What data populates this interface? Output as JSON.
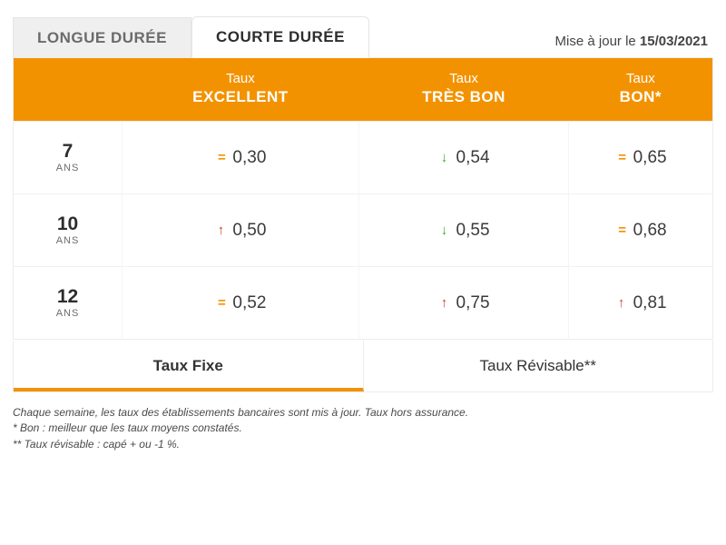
{
  "colors": {
    "brand_orange": "#f39200",
    "up": "#d83a2b",
    "down": "#3fa82f",
    "equal": "#f39200",
    "text": "#333333",
    "muted": "#6b6b6b",
    "border": "#ececec",
    "bg": "#ffffff"
  },
  "tabs_top": {
    "longue": "LONGUE DURÉE",
    "courte": "COURTE DURÉE",
    "active": "courte"
  },
  "update": {
    "prefix": "Mise à jour le ",
    "date": "15/03/2021"
  },
  "table": {
    "type": "table",
    "header_top": "Taux",
    "year_unit": "ANS",
    "columns": [
      {
        "label": "EXCELLENT"
      },
      {
        "label": "TRÈS BON"
      },
      {
        "label": "BON*"
      }
    ],
    "rows": [
      {
        "years": "7",
        "cells": [
          {
            "trend": "eq",
            "value": "0,30"
          },
          {
            "trend": "down",
            "value": "0,54"
          },
          {
            "trend": "eq",
            "value": "0,65"
          }
        ]
      },
      {
        "years": "10",
        "cells": [
          {
            "trend": "up",
            "value": "0,50"
          },
          {
            "trend": "down",
            "value": "0,55"
          },
          {
            "trend": "eq",
            "value": "0,68"
          }
        ]
      },
      {
        "years": "12",
        "cells": [
          {
            "trend": "eq",
            "value": "0,52"
          },
          {
            "trend": "up",
            "value": "0,75"
          },
          {
            "trend": "up",
            "value": "0,81"
          }
        ]
      }
    ]
  },
  "tabs_bottom": {
    "fixe": "Taux Fixe",
    "revisable": "Taux Révisable**",
    "active": "fixe"
  },
  "footnotes": {
    "line1": "Chaque semaine, les taux des établissements bancaires sont mis à jour. Taux hors assurance.",
    "line2": "* Bon : meilleur que les taux moyens constatés.",
    "line3": "** Taux révisable : capé + ou -1 %."
  },
  "trend_glyphs": {
    "eq": "=",
    "up": "↑",
    "down": "↓"
  }
}
